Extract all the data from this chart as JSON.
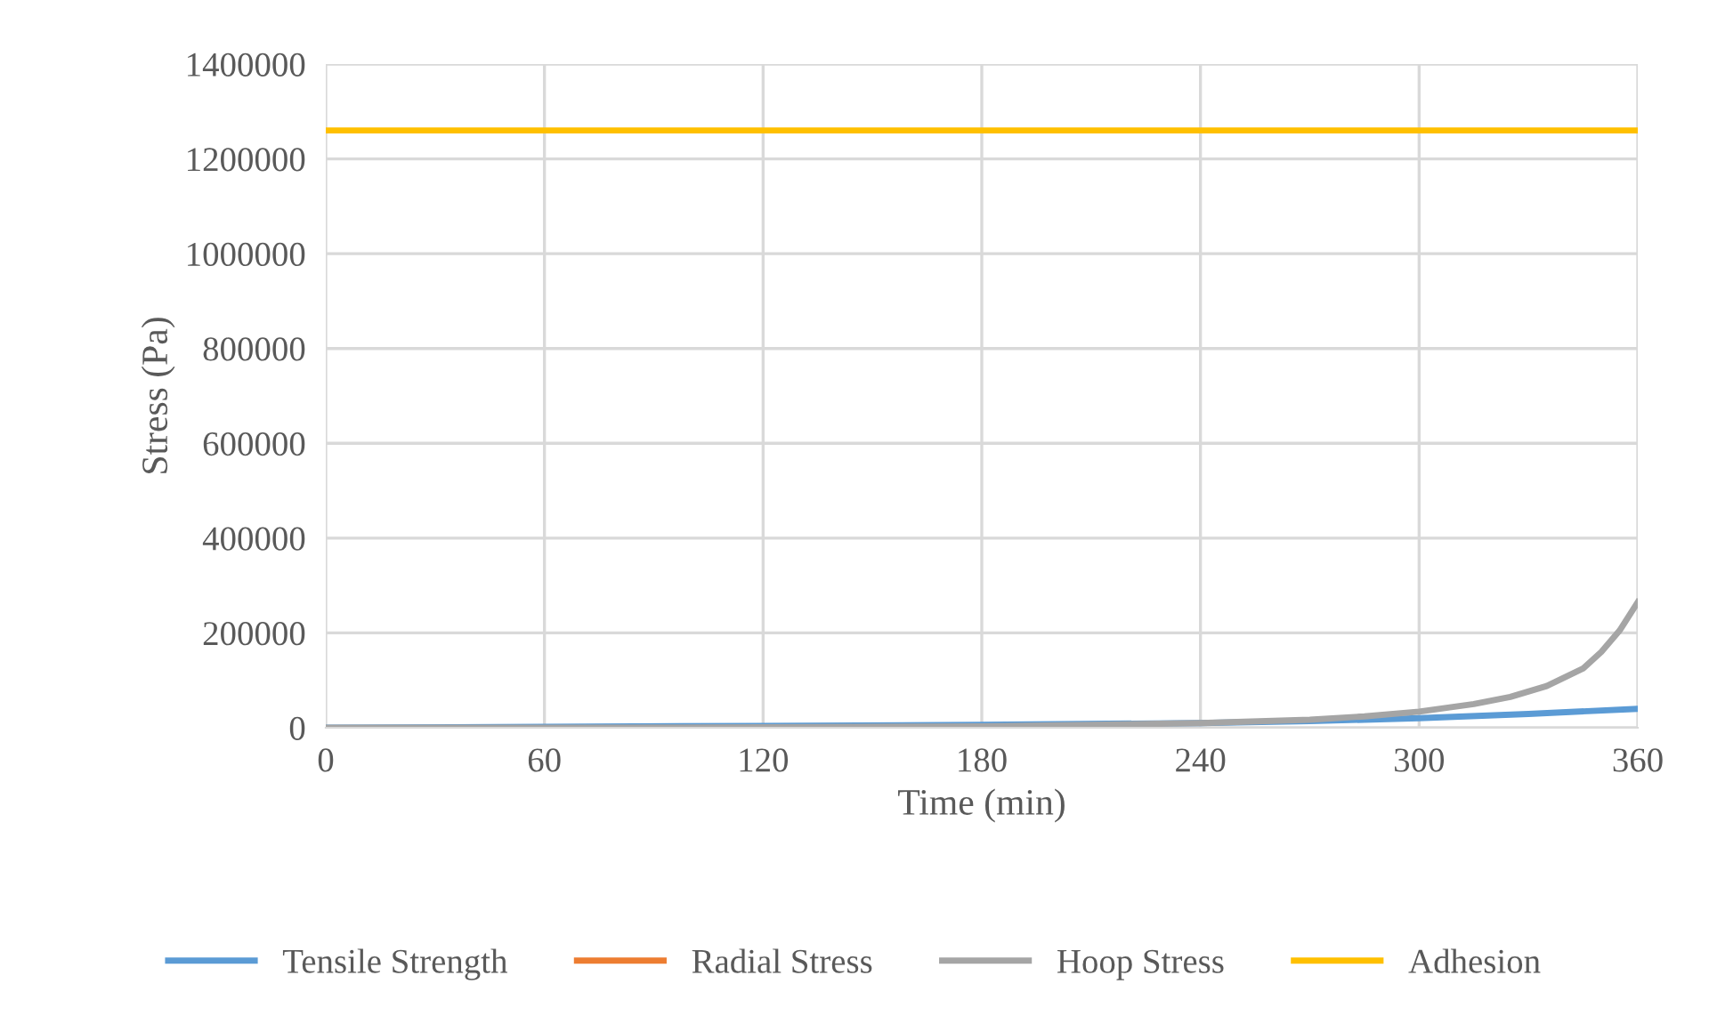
{
  "chart_data": {
    "type": "line",
    "xlabel": "Time (min)",
    "ylabel": "Stress (Pa)",
    "xlim": [
      0,
      360
    ],
    "xticks": [
      0,
      60,
      120,
      180,
      240,
      300,
      360
    ],
    "ylim": [
      0,
      1400000
    ],
    "yticks": [
      0,
      200000,
      400000,
      600000,
      800000,
      1000000,
      1200000,
      1400000
    ],
    "grid": true,
    "legend": "bottom",
    "marker": "none",
    "series": [
      {
        "name": "Tensile Strength",
        "color": "#5b9bd5",
        "x": [
          0,
          60,
          120,
          180,
          240,
          270,
          300,
          330,
          360
        ],
        "values": [
          0,
          2000,
          4000,
          6000,
          10000,
          14000,
          20000,
          29000,
          40000
        ]
      },
      {
        "name": "Radial Stress",
        "color": "#ed7d31"
      },
      {
        "name": "Hoop Stress",
        "color": "#a5a5a5",
        "x": [
          0,
          60,
          120,
          180,
          210,
          240,
          270,
          285,
          300,
          315,
          325,
          335,
          345,
          350,
          355,
          360
        ],
        "values": [
          0,
          0,
          1000,
          3000,
          6000,
          10000,
          17000,
          24000,
          34000,
          50000,
          65000,
          88000,
          125000,
          160000,
          205000,
          265000
        ]
      },
      {
        "name": "Adhesion",
        "color": "#ffc000",
        "x": [
          0,
          360
        ],
        "values": [
          1260000,
          1260000
        ]
      }
    ]
  }
}
